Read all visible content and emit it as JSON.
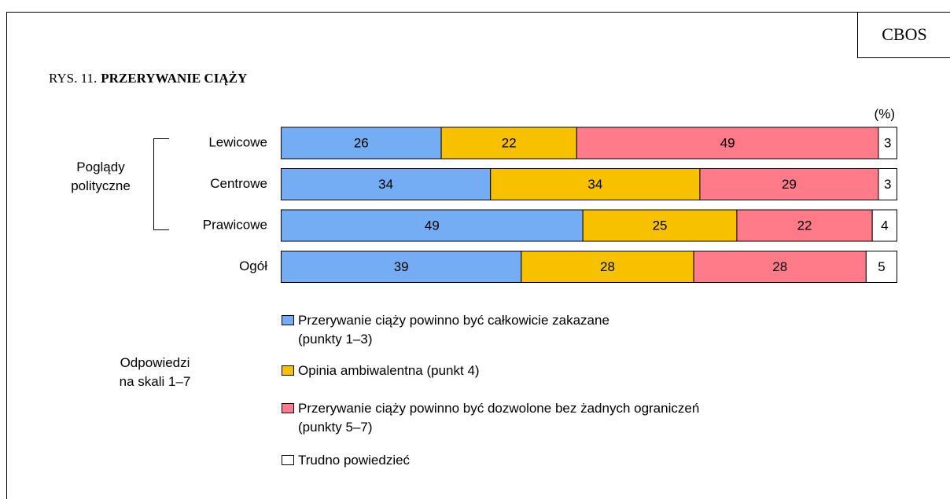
{
  "chart_data": {
    "type": "stacked-barh",
    "source": "CBOS",
    "figure_label": "RYS. 11.",
    "title": "PRZERYWANIE CIĄŻY",
    "unit_label": "(%)",
    "group_label": "Poglądy\npolityczne",
    "legend_title": "Odpowiedzi\nna skali 1–7",
    "categories": [
      "Lewicowe",
      "Centrowe",
      "Prawicowe",
      "Ogół"
    ],
    "xlim": [
      0,
      100
    ],
    "series": [
      {
        "name": "Przerywanie ciąży powinno być całkowicie zakazane\n(punkty 1–3)",
        "color": "#74adf4",
        "values": [
          26,
          34,
          49,
          39
        ]
      },
      {
        "name": "Opinia ambiwalentna (punkt 4)",
        "color": "#f7c100",
        "values": [
          22,
          34,
          25,
          28
        ]
      },
      {
        "name": "Przerywanie ciąży powinno być dozwolone bez żadnych ograniczeń\n(punkty 5–7)",
        "color": "#ff7b89",
        "values": [
          49,
          29,
          22,
          28
        ]
      },
      {
        "name": "Trudno powiedzieć",
        "color": "#ffffff",
        "values": [
          3,
          3,
          4,
          5
        ]
      }
    ]
  }
}
